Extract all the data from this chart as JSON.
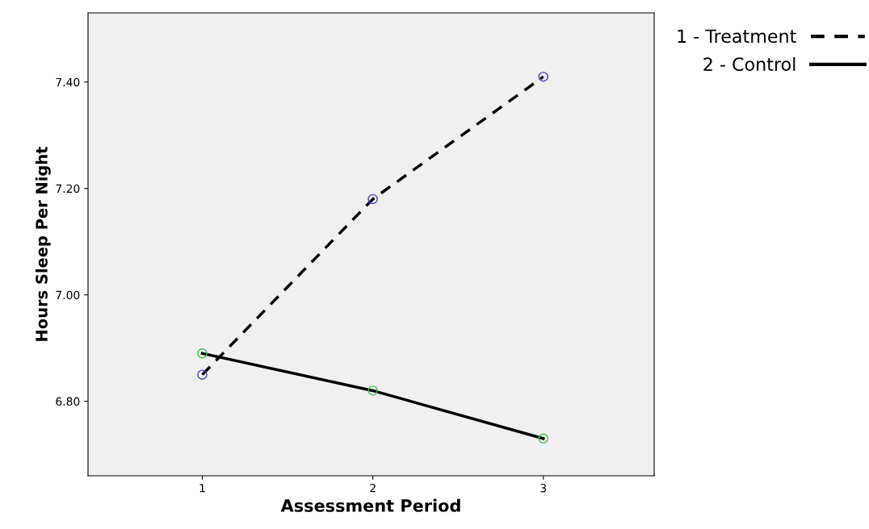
{
  "chart_data": {
    "type": "line",
    "xlabel": "Assessment Period",
    "ylabel": "Hours Sleep Per Night",
    "x": [
      1,
      2,
      3
    ],
    "series": [
      {
        "name": "1 - Treatment",
        "color": "#000000",
        "colors": [
          "#3c48c8",
          "#3c48c8",
          "#3c48c8"
        ],
        "line_style": "dashed",
        "values": [
          6.85,
          7.18,
          7.41
        ]
      },
      {
        "name": "2 - Control",
        "color": "#000000",
        "colors": [
          "#3cc83c",
          "#3cc83c",
          "#3cc83c"
        ],
        "line_style": "solid",
        "values": [
          6.89,
          6.82,
          6.73
        ]
      }
    ],
    "marker": "circle",
    "xlim": [
      0.33,
      3.65
    ],
    "xticks": [
      1,
      2,
      3
    ],
    "ylim": [
      6.66,
      7.53
    ],
    "yticks": [
      {
        "value": 6.8,
        "label": "6.80"
      },
      {
        "value": 7.0,
        "label": "7.00"
      },
      {
        "value": 7.2,
        "label": "7.20"
      },
      {
        "value": 7.4,
        "label": "7.40"
      }
    ],
    "grid": false,
    "legend": "top right"
  }
}
